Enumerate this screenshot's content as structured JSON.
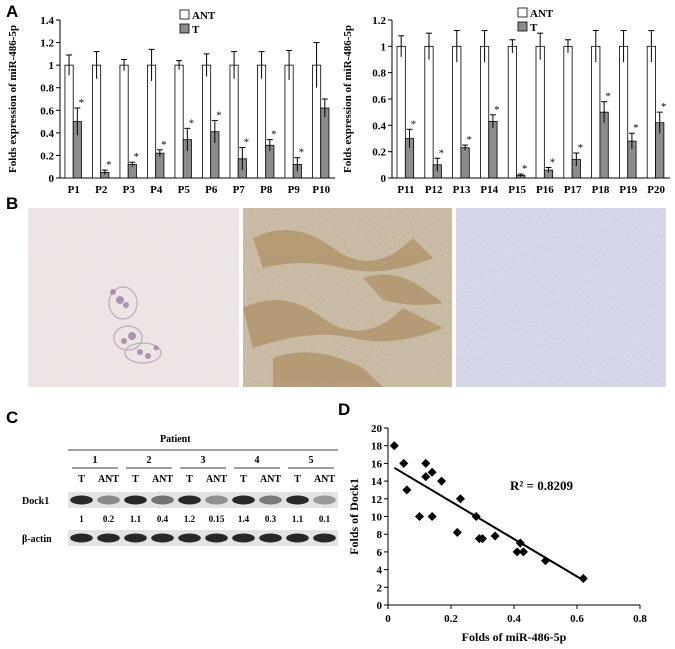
{
  "panels": {
    "a": "A",
    "b": "B",
    "c": "C",
    "d": "D"
  },
  "colors": {
    "ant": "#ffffff",
    "t": "#8c8c8c",
    "stroke": "#000000"
  },
  "chart_data": [
    {
      "type": "bar",
      "ylabel": "Folds expression of miR-486-5p",
      "ylim": [
        0,
        1.4
      ],
      "yticks": [
        "0",
        "0.2",
        "0.4",
        "0.6",
        "0.8",
        "1",
        "1.2",
        "1.4"
      ],
      "categories": [
        "P1",
        "P2",
        "P3",
        "P4",
        "P5",
        "P6",
        "P7",
        "P8",
        "P9",
        "P10"
      ],
      "series": [
        {
          "name": "ANT",
          "values": [
            1,
            1,
            1,
            1,
            1,
            1,
            1,
            1,
            1,
            1
          ],
          "errors": [
            0.09,
            0.12,
            0.05,
            0.14,
            0.04,
            0.1,
            0.12,
            0.12,
            0.13,
            0.2
          ]
        },
        {
          "name": "T",
          "values": [
            0.5,
            0.05,
            0.12,
            0.22,
            0.34,
            0.41,
            0.17,
            0.29,
            0.12,
            0.62
          ],
          "errors": [
            0.12,
            0.02,
            0.02,
            0.03,
            0.1,
            0.1,
            0.1,
            0.05,
            0.06,
            0.08
          ]
        }
      ],
      "significant": [
        true,
        true,
        true,
        true,
        true,
        true,
        true,
        true,
        true,
        false
      ],
      "star": "*",
      "legend": [
        "ANT",
        "T"
      ]
    },
    {
      "type": "bar",
      "ylabel": "Folds expression of miR-486-5p",
      "ylim": [
        0,
        1.2
      ],
      "yticks": [
        "0",
        "0.2",
        "0.4",
        "0.6",
        "0.8",
        "1",
        "1.2"
      ],
      "categories": [
        "P11",
        "P12",
        "P13",
        "P14",
        "P15",
        "P16",
        "P17",
        "P18",
        "P19",
        "P20"
      ],
      "series": [
        {
          "name": "ANT",
          "values": [
            1,
            1,
            1,
            1,
            1,
            1,
            1,
            1,
            1,
            1
          ],
          "errors": [
            0.08,
            0.1,
            0.12,
            0.12,
            0.05,
            0.1,
            0.05,
            0.12,
            0.12,
            0.12
          ]
        },
        {
          "name": "T",
          "values": [
            0.3,
            0.1,
            0.23,
            0.43,
            0.02,
            0.06,
            0.14,
            0.5,
            0.28,
            0.42
          ],
          "errors": [
            0.07,
            0.05,
            0.02,
            0.05,
            0.01,
            0.02,
            0.05,
            0.08,
            0.06,
            0.08
          ]
        }
      ],
      "significant": [
        true,
        true,
        true,
        true,
        true,
        true,
        true,
        true,
        true,
        true
      ],
      "star": "*",
      "legend": [
        "ANT",
        "T"
      ]
    },
    {
      "type": "scatter",
      "xlabel": "Folds of miR-486-5p",
      "ylabel": "Folds of Dock1",
      "xlim": [
        0,
        0.8
      ],
      "ylim": [
        0,
        20
      ],
      "xticks": [
        "0",
        "0.2",
        "0.4",
        "0.6",
        "0.8"
      ],
      "yticks": [
        "0",
        "2",
        "4",
        "6",
        "8",
        "10",
        "12",
        "14",
        "16",
        "18",
        "20"
      ],
      "annotation": "R² = 0.8209",
      "points": [
        [
          0.02,
          18
        ],
        [
          0.05,
          16
        ],
        [
          0.06,
          13
        ],
        [
          0.1,
          10
        ],
        [
          0.12,
          16
        ],
        [
          0.12,
          14.5
        ],
        [
          0.14,
          10
        ],
        [
          0.14,
          15
        ],
        [
          0.17,
          14
        ],
        [
          0.22,
          8.2
        ],
        [
          0.23,
          12
        ],
        [
          0.28,
          10
        ],
        [
          0.29,
          7.5
        ],
        [
          0.3,
          7.5
        ],
        [
          0.34,
          7.8
        ],
        [
          0.41,
          6
        ],
        [
          0.42,
          7
        ],
        [
          0.43,
          6
        ],
        [
          0.5,
          5
        ],
        [
          0.62,
          3
        ]
      ],
      "trendline": [
        [
          0.02,
          15.5
        ],
        [
          0.62,
          2.8
        ]
      ]
    }
  ],
  "blot": {
    "header": "Patient",
    "patients": [
      "1",
      "2",
      "3",
      "4",
      "5"
    ],
    "lanes": [
      "T",
      "ANT",
      "T",
      "ANT",
      "T",
      "ANT",
      "T",
      "ANT",
      "T",
      "ANT"
    ],
    "rows": [
      {
        "label": "Dock1",
        "quant": [
          "1",
          "0.2",
          "1.1",
          "0.4",
          "1.2",
          "0.15",
          "1.4",
          "0.3",
          "1.1",
          "0.1"
        ],
        "intensity": [
          1,
          0.35,
          1,
          0.5,
          1,
          0.3,
          1,
          0.45,
          1,
          0.25
        ]
      },
      {
        "label": "β-actin",
        "intensity": [
          1,
          1,
          1,
          1,
          1,
          1,
          1,
          1,
          1,
          1
        ]
      }
    ]
  }
}
